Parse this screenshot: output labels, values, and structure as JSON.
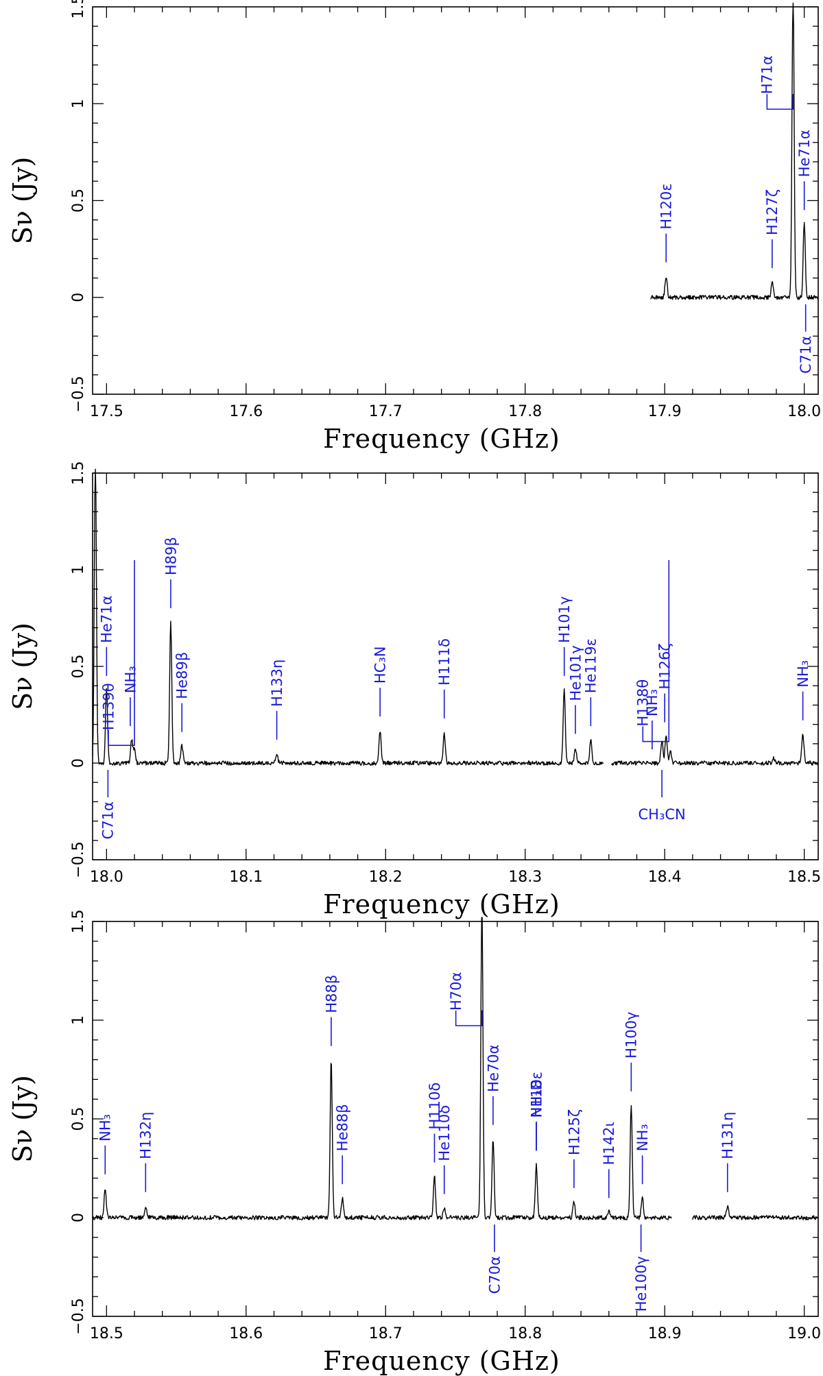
{
  "chart_data": [
    {
      "type": "line",
      "xlabel": "Frequency (GHz)",
      "ylabel": "Sν (Jy)",
      "xlim": [
        17.49,
        18.01
      ],
      "ylim": [
        -0.5,
        1.5
      ],
      "xticks": [
        17.5,
        17.6,
        17.7,
        17.8,
        17.9,
        18.0
      ],
      "xtick_labels": [
        "17.5",
        "17.6",
        "17.7",
        "17.8",
        "17.9",
        "18.0"
      ],
      "yticks": [
        -0.5,
        0,
        0.5,
        1,
        1.5
      ],
      "ytick_labels": [
        "−0.5",
        "0",
        "0.5",
        "1",
        "1.5"
      ],
      "coverage": [
        [
          17.89,
          18.01
        ]
      ],
      "peaks": [
        [
          17.901,
          0.11
        ],
        [
          17.977,
          0.08
        ],
        [
          17.992,
          1.6
        ],
        [
          18.0,
          0.38
        ]
      ],
      "lines": [
        {
          "label": "H120ε",
          "freq": 17.901,
          "side": "up"
        },
        {
          "label": "H127ζ",
          "freq": 17.977,
          "side": "up"
        },
        {
          "label": "H71α",
          "freq": 17.992,
          "side": "up",
          "elbow": true
        },
        {
          "label": "He71α",
          "freq": 18.0,
          "side": "up"
        },
        {
          "label": "C71α",
          "freq": 18.001,
          "side": "down"
        }
      ]
    },
    {
      "type": "line",
      "xlabel": "Frequency (GHz)",
      "ylabel": "Sν (Jy)",
      "xlim": [
        17.99,
        18.51
      ],
      "ylim": [
        -0.5,
        1.5
      ],
      "xticks": [
        18.0,
        18.1,
        18.2,
        18.3,
        18.4,
        18.5
      ],
      "xtick_labels": [
        "18.0",
        "18.1",
        "18.2",
        "18.3",
        "18.4",
        "18.5"
      ],
      "yticks": [
        -0.5,
        0,
        0.5,
        1,
        1.5
      ],
      "ytick_labels": [
        "−0.5",
        "0",
        "0.5",
        "1",
        "1.5"
      ],
      "coverage": [
        [
          17.99,
          18.356
        ],
        [
          18.362,
          18.51
        ]
      ],
      "peaks": [
        [
          17.992,
          1.6
        ],
        [
          18.0,
          0.38
        ],
        [
          18.018,
          0.12
        ],
        [
          18.02,
          0.07
        ],
        [
          18.046,
          0.73
        ],
        [
          18.054,
          0.09
        ],
        [
          18.122,
          0.05
        ],
        [
          18.196,
          0.17
        ],
        [
          18.242,
          0.16
        ],
        [
          18.328,
          0.38
        ],
        [
          18.336,
          0.08
        ],
        [
          18.347,
          0.12
        ],
        [
          18.398,
          0.12
        ],
        [
          18.401,
          0.14
        ],
        [
          18.404,
          0.06
        ],
        [
          18.478,
          0.03
        ],
        [
          18.499,
          0.15
        ]
      ],
      "lines": [
        {
          "label": "He71α",
          "freq": 18.0,
          "side": "up"
        },
        {
          "label": "C71α",
          "freq": 18.001,
          "side": "down"
        },
        {
          "label": "NH₃",
          "freq": 18.017,
          "side": "up"
        },
        {
          "label": "H139θ",
          "freq": 18.02,
          "side": "up",
          "elbow": true
        },
        {
          "label": "H89β",
          "freq": 18.046,
          "side": "up"
        },
        {
          "label": "He89β",
          "freq": 18.054,
          "side": "up"
        },
        {
          "label": "H133η",
          "freq": 18.122,
          "side": "up"
        },
        {
          "label": "HC₃N",
          "freq": 18.196,
          "side": "up"
        },
        {
          "label": "H111δ",
          "freq": 18.242,
          "side": "up"
        },
        {
          "label": "H101γ",
          "freq": 18.328,
          "side": "up"
        },
        {
          "label": "He101γ",
          "freq": 18.336,
          "side": "up"
        },
        {
          "label": "He119ε",
          "freq": 18.347,
          "side": "up"
        },
        {
          "label": "NH₃",
          "freq": 18.391,
          "side": "up"
        },
        {
          "label": "H126ζ",
          "freq": 18.4,
          "side": "up"
        },
        {
          "label": "H138θ",
          "freq": 18.403,
          "side": "up",
          "elbow": true
        },
        {
          "label": "CH₃CN",
          "freq": 18.398,
          "side": "down"
        },
        {
          "label": "NH₃",
          "freq": 18.499,
          "side": "up"
        }
      ]
    },
    {
      "type": "line",
      "xlabel": "Frequency (GHz)",
      "ylabel": "Sν (Jy)",
      "xlim": [
        18.49,
        19.01
      ],
      "ylim": [
        -0.5,
        1.5
      ],
      "xticks": [
        18.5,
        18.6,
        18.7,
        18.8,
        18.9,
        19.0
      ],
      "xtick_labels": [
        "18.5",
        "18.6",
        "18.7",
        "18.8",
        "18.9",
        "19.0"
      ],
      "yticks": [
        -0.5,
        0,
        0.5,
        1,
        1.5
      ],
      "ytick_labels": [
        "−0.5",
        "0",
        "0.5",
        "1",
        "1.5"
      ],
      "coverage": [
        [
          18.49,
          18.905
        ],
        [
          18.92,
          19.01
        ]
      ],
      "peaks": [
        [
          18.499,
          0.15
        ],
        [
          18.528,
          0.06
        ],
        [
          18.661,
          0.8
        ],
        [
          18.669,
          0.1
        ],
        [
          18.735,
          0.21
        ],
        [
          18.742,
          0.05
        ],
        [
          18.769,
          1.6
        ],
        [
          18.777,
          0.4
        ],
        [
          18.808,
          0.27
        ],
        [
          18.835,
          0.08
        ],
        [
          18.86,
          0.03
        ],
        [
          18.876,
          0.57
        ],
        [
          18.884,
          0.1
        ],
        [
          18.945,
          0.06
        ]
      ],
      "lines": [
        {
          "label": "NH₃",
          "freq": 18.499,
          "side": "up"
        },
        {
          "label": "H132η",
          "freq": 18.528,
          "side": "up"
        },
        {
          "label": "H88β",
          "freq": 18.661,
          "side": "up"
        },
        {
          "label": "He88β",
          "freq": 18.669,
          "side": "up"
        },
        {
          "label": "H110δ",
          "freq": 18.735,
          "side": "up"
        },
        {
          "label": "He110δ",
          "freq": 18.742,
          "side": "up"
        },
        {
          "label": "H70α",
          "freq": 18.769,
          "side": "up",
          "elbow": true
        },
        {
          "label": "He70α",
          "freq": 18.777,
          "side": "up"
        },
        {
          "label": "C70α",
          "freq": 18.778,
          "side": "down"
        },
        {
          "label": "NH₂D",
          "freq": 18.808,
          "side": "up",
          "bracket": true
        },
        {
          "label": "NH₃",
          "freq": 18.808,
          "side": "up"
        },
        {
          "label": "H118ε",
          "freq": 18.808,
          "side": "up",
          "bracket": true
        },
        {
          "label": "H125ζ",
          "freq": 18.835,
          "side": "up"
        },
        {
          "label": "H142ι",
          "freq": 18.86,
          "side": "up"
        },
        {
          "label": "H100γ",
          "freq": 18.876,
          "side": "up"
        },
        {
          "label": "NH₃",
          "freq": 18.884,
          "side": "up"
        },
        {
          "label": "He100γ",
          "freq": 18.883,
          "side": "down"
        },
        {
          "label": "H131η",
          "freq": 18.945,
          "side": "up"
        }
      ]
    }
  ]
}
